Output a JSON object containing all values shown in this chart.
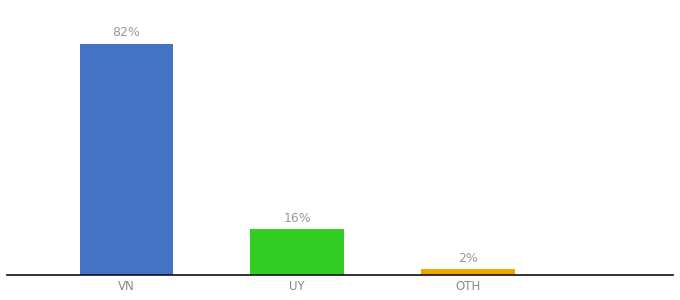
{
  "categories": [
    "VN",
    "UY",
    "OTH"
  ],
  "values": [
    82,
    16,
    2
  ],
  "bar_colors": [
    "#4472c4",
    "#33cc22",
    "#f0a500"
  ],
  "labels": [
    "82%",
    "16%",
    "2%"
  ],
  "ylim": [
    0,
    95
  ],
  "background_color": "#ffffff",
  "label_fontsize": 9,
  "tick_fontsize": 8.5,
  "bar_width": 0.55,
  "x_positions": [
    1.0,
    2.0,
    3.0
  ],
  "xlim": [
    0.3,
    4.2
  ]
}
